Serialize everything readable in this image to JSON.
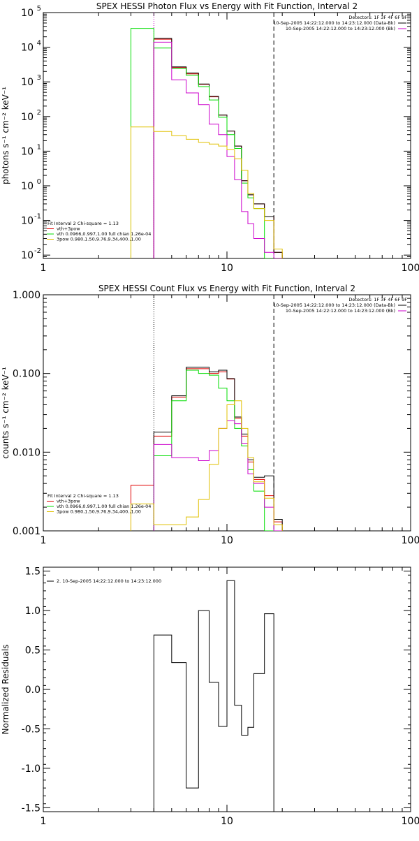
{
  "chart_data": [
    {
      "type": "step",
      "title": "SPEX HESSI Photon Flux vs Energy with Fit Function, Interval 2",
      "ylabel": "photons s⁻¹ cm⁻² keV⁻¹",
      "xlabel": "",
      "xscale": "log",
      "yscale": "log",
      "xlim": [
        1,
        100
      ],
      "ylim": [
        0.008,
        100000
      ],
      "x_ticks": [
        {
          "v": 1,
          "label": "1"
        },
        {
          "v": 10,
          "label": "10"
        },
        {
          "v": 100,
          "label": "100"
        }
      ],
      "y_ticks": [
        {
          "v": 0.01,
          "base": "10",
          "exp": "-2"
        },
        {
          "v": 0.1,
          "base": "10",
          "exp": "-1"
        },
        {
          "v": 1,
          "base": "10",
          "exp": "0"
        },
        {
          "v": 10,
          "base": "10",
          "exp": "1"
        },
        {
          "v": 100,
          "base": "10",
          "exp": "2"
        },
        {
          "v": 1000,
          "base": "10",
          "exp": "3"
        },
        {
          "v": 10000,
          "base": "10",
          "exp": "4"
        },
        {
          "v": 100000,
          "base": "10",
          "exp": "5"
        }
      ],
      "vlines": [
        {
          "x": 4.0,
          "style": "dotted",
          "color": "#cc00cc"
        },
        {
          "x": 18.0,
          "style": "dashed",
          "color": "#000000"
        }
      ],
      "header": [
        {
          "text": "Detectors: 1F 3F 4F 6F 9F",
          "color": "#000000",
          "line": false
        },
        {
          "text": "10-Sep-2005 14:22:12.000 to 14:23:12.000 (Data-Bk)",
          "color": "#000000",
          "line": true
        },
        {
          "text": "10-Sep-2005 14:22:12.000 to 14:23:12.000 (Bk)",
          "color": "#cc00cc",
          "line": true
        }
      ],
      "legend": [
        {
          "text": "Fit Interval 2   Chi-square = 1.13",
          "color": "#000000",
          "line": false
        },
        {
          "text": "vth+3pow",
          "color": "#e00000",
          "line": true
        },
        {
          "text": "vth 0.0966,0.997,1.00  full chian 1.26e-04",
          "color": "#00dd00",
          "line": true
        },
        {
          "text": "3pow 0.980,1.50,9.76,9.34,400.,1.00",
          "color": "#e0c000",
          "line": true
        }
      ],
      "edges": [
        3,
        4,
        5,
        6,
        7,
        8,
        9,
        10,
        11,
        12,
        13,
        14,
        16,
        18,
        20
      ],
      "series": [
        {
          "color": "#e00000",
          "values": [
            null,
            17000,
            2600,
            1700,
            850,
            370,
            110,
            38,
            14,
            1.4,
            0.55,
            0.3,
            0.13,
            0.012
          ]
        },
        {
          "color": "#000000",
          "values": [
            null,
            18000,
            2700,
            1800,
            870,
            380,
            110,
            38,
            14,
            1.4,
            0.55,
            0.3,
            0.13,
            0.012
          ]
        },
        {
          "color": "#00dd00",
          "values": [
            35000,
            9500,
            2400,
            1550,
            730,
            300,
            95,
            30,
            12,
            1.2,
            0.45,
            0.22,
            0.008,
            null
          ]
        },
        {
          "color": "#cc00cc",
          "values": [
            null,
            14000,
            1150,
            480,
            220,
            60,
            30,
            7,
            1.5,
            0.18,
            0.08,
            0.03,
            0.012,
            0.008
          ]
        },
        {
          "color": "#e0c000",
          "values": [
            50,
            37,
            28,
            22,
            18,
            16,
            14,
            11,
            6,
            2.8,
            0.6,
            0.22,
            0.1,
            0.015
          ]
        }
      ]
    },
    {
      "type": "step",
      "title": "SPEX HESSI Count Flux vs Energy with Fit Function, Interval 2",
      "ylabel": "counts s⁻¹ cm⁻² keV⁻¹",
      "xlabel": "",
      "xscale": "log",
      "yscale": "log",
      "xlim": [
        1,
        100
      ],
      "ylim": [
        0.001,
        1
      ],
      "x_ticks": [
        {
          "v": 1,
          "label": "1"
        },
        {
          "v": 10,
          "label": "10"
        },
        {
          "v": 100,
          "label": "100"
        }
      ],
      "y_ticks": [
        {
          "v": 0.001,
          "label": "0.001"
        },
        {
          "v": 0.01,
          "label": "0.010"
        },
        {
          "v": 0.1,
          "label": "0.100"
        },
        {
          "v": 1,
          "label": "1.000"
        }
      ],
      "vlines": [
        {
          "x": 4.0,
          "style": "dotted",
          "color": "#000000"
        },
        {
          "x": 18.0,
          "style": "dashed",
          "color": "#000000"
        }
      ],
      "header": [
        {
          "text": "Detectors: 1F 3F 4F 6F 9F",
          "color": "#000000",
          "line": false
        },
        {
          "text": "10-Sep-2005 14:22:12.000 to 14:23:12.000 (Data-Bk)",
          "color": "#000000",
          "line": true
        },
        {
          "text": "10-Sep-2005 14:22:12.000 to 14:23:12.000 (Bk)",
          "color": "#cc00cc",
          "line": true
        }
      ],
      "legend": [
        {
          "text": "Fit Interval 2   Chi-square = 1.13",
          "color": "#000000",
          "line": false
        },
        {
          "text": "vth+3pow",
          "color": "#e00000",
          "line": true
        },
        {
          "text": "vth 0.0966,0.997,1.00  full chian 1.26e-04",
          "color": "#00dd00",
          "line": true
        },
        {
          "text": "3pow 0.980,1.50,9.76,9.34,400.,1.00",
          "color": "#e0c000",
          "line": true
        }
      ],
      "edges": [
        3,
        4,
        5,
        6,
        7,
        8,
        9,
        10,
        11,
        12,
        13,
        14,
        16,
        18,
        20
      ],
      "series": [
        {
          "color": "#e00000",
          "values": [
            0.0038,
            0.016,
            0.05,
            0.115,
            0.115,
            0.1,
            0.105,
            0.085,
            0.027,
            0.016,
            0.0075,
            0.0045,
            0.0028,
            0.0013
          ]
        },
        {
          "color": "#000000",
          "values": [
            null,
            0.018,
            0.052,
            0.12,
            0.12,
            0.105,
            0.11,
            0.086,
            0.028,
            0.017,
            0.008,
            0.0048,
            0.005,
            0.0014
          ]
        },
        {
          "color": "#00dd00",
          "values": [
            null,
            0.009,
            0.045,
            0.11,
            0.1,
            0.095,
            0.065,
            0.045,
            0.02,
            0.012,
            0.006,
            0.0032,
            0.001,
            null
          ]
        },
        {
          "color": "#cc00cc",
          "values": [
            null,
            0.0125,
            0.0085,
            0.0085,
            0.0078,
            0.0105,
            0.02,
            0.025,
            0.023,
            0.013,
            0.0053,
            0.004,
            0.002,
            0.001
          ]
        },
        {
          "color": "#e0c000",
          "values": [
            0.0022,
            0.0012,
            0.0012,
            0.0015,
            0.0025,
            0.007,
            0.02,
            0.04,
            0.045,
            0.02,
            0.0085,
            0.0042,
            0.0026,
            0.0012
          ]
        }
      ]
    },
    {
      "type": "step",
      "title": "",
      "ylabel": "Normalized Residuals",
      "xlabel": "",
      "xscale": "log",
      "yscale": "linear",
      "xlim": [
        1,
        100
      ],
      "ylim": [
        -1.55,
        1.55
      ],
      "x_ticks": [
        {
          "v": 1,
          "label": "1"
        },
        {
          "v": 10,
          "label": "10"
        },
        {
          "v": 100,
          "label": "100"
        }
      ],
      "y_ticks": [
        {
          "v": -1.5,
          "label": "-1.5"
        },
        {
          "v": -1.0,
          "label": "-1.0"
        },
        {
          "v": -0.5,
          "label": "-0.5"
        },
        {
          "v": 0.0,
          "label": "0.0"
        },
        {
          "v": 0.5,
          "label": "0.5"
        },
        {
          "v": 1.0,
          "label": "1.0"
        },
        {
          "v": 1.5,
          "label": "1.5"
        }
      ],
      "vlines": [],
      "header": [],
      "legend": [
        {
          "text": "2. 10-Sep-2005 14:22:12.000 to 14:23:12.000",
          "color": "#000000",
          "line": true
        }
      ],
      "edges": [
        4,
        5,
        6,
        7,
        8,
        9,
        10,
        11,
        12,
        13,
        14,
        16,
        18
      ],
      "series": [
        {
          "color": "#000000",
          "drop": true,
          "values": [
            0.69,
            0.34,
            -1.25,
            1.0,
            0.09,
            -0.47,
            1.38,
            -0.2,
            -0.58,
            -0.48,
            0.2,
            0.96
          ]
        }
      ]
    }
  ]
}
